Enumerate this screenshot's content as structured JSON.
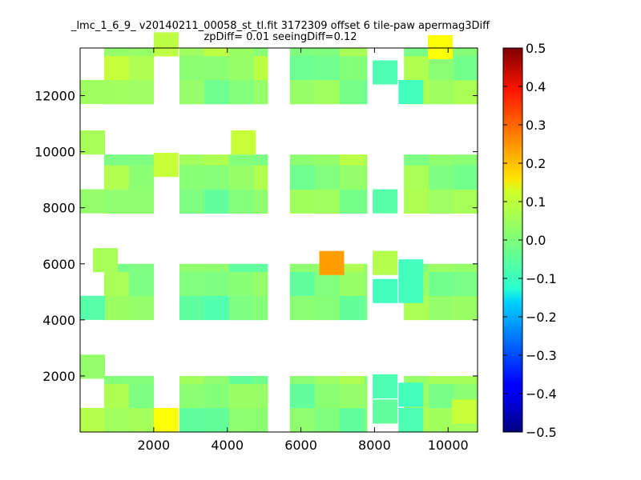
{
  "chart_data": {
    "type": "heatmap",
    "title": "_lmc_1_6_9_ v20140211_00058_st_tl.fit 3172309 offset 6 tile-paw apermag3Diff",
    "subtitle": "zpDiff= 0.01 seeingDiff=0.12",
    "xlabel": "",
    "ylabel": "",
    "xlim": [
      0,
      10800
    ],
    "ylim": [
      0,
      13700
    ],
    "x_ticks": [
      2000,
      4000,
      6000,
      8000,
      10000
    ],
    "y_ticks": [
      2000,
      4000,
      6000,
      8000,
      10000,
      12000
    ],
    "x_tick_labels": [
      "2000",
      "4000",
      "6000",
      "8000",
      "10000"
    ],
    "y_tick_labels": [
      "2000",
      "4000",
      "6000",
      "8000",
      "10000",
      "12000"
    ],
    "colorbar": {
      "colormap": "jet",
      "vmin": -0.5,
      "vmax": 0.5,
      "ticks": [
        0.5,
        0.4,
        0.3,
        0.2,
        0.1,
        0.0,
        -0.1,
        -0.2,
        -0.3,
        -0.4,
        -0.5
      ],
      "tick_labels": [
        "0.5",
        "0.4",
        "0.3",
        "0.2",
        "0.1",
        "0.0",
        "−0.1",
        "−0.2",
        "−0.3",
        "−0.4",
        "−0.5"
      ]
    },
    "grid": false,
    "cell_size": [
      675,
      860
    ],
    "blocks": [
      {
        "x": [
          650,
          2000
        ],
        "y": [
          0,
          2000
        ],
        "value": 0.02
      },
      {
        "x": [
          2700,
          5100
        ],
        "y": [
          0,
          2000
        ],
        "value": 0.0
      },
      {
        "x": [
          5700,
          7800
        ],
        "y": [
          0,
          2000
        ],
        "value": 0.01
      },
      {
        "x": [
          8800,
          10800
        ],
        "y": [
          0,
          2000
        ],
        "value": 0.03
      },
      {
        "x": [
          650,
          2000
        ],
        "y": [
          4000,
          6000
        ],
        "value": 0.01
      },
      {
        "x": [
          2700,
          5100
        ],
        "y": [
          4000,
          6000
        ],
        "value": -0.01
      },
      {
        "x": [
          5700,
          7800
        ],
        "y": [
          4000,
          6000
        ],
        "value": 0.01
      },
      {
        "x": [
          8800,
          10800
        ],
        "y": [
          4000,
          6000
        ],
        "value": 0.02
      },
      {
        "x": [
          650,
          2000
        ],
        "y": [
          7800,
          9900
        ],
        "value": 0.01
      },
      {
        "x": [
          2700,
          5100
        ],
        "y": [
          7800,
          9900
        ],
        "value": 0.01
      },
      {
        "x": [
          5700,
          7800
        ],
        "y": [
          7800,
          9900
        ],
        "value": 0.02
      },
      {
        "x": [
          8800,
          10800
        ],
        "y": [
          7800,
          9900
        ],
        "value": 0.02
      },
      {
        "x": [
          650,
          2000
        ],
        "y": [
          11700,
          13700
        ],
        "value": 0.03
      },
      {
        "x": [
          2700,
          5100
        ],
        "y": [
          11700,
          13700
        ],
        "value": 0.02
      },
      {
        "x": [
          5700,
          7800
        ],
        "y": [
          11700,
          13700
        ],
        "value": 0.01
      },
      {
        "x": [
          8800,
          10800
        ],
        "y": [
          11700,
          13700
        ],
        "value": 0.02
      }
    ],
    "cells": [
      {
        "x": 0,
        "y": 0,
        "value": 0.05
      },
      {
        "x": 2000,
        "y": 0,
        "value": 0.12
      },
      {
        "x": 0,
        "y": 1900,
        "value": 0.02
      },
      {
        "x": 0,
        "y": 4000,
        "value": -0.04
      },
      {
        "x": 350,
        "y": 5700,
        "value": 0.04
      },
      {
        "x": 6500,
        "y": 5600,
        "value": 0.22
      },
      {
        "x": 7950,
        "y": 5600,
        "value": 0.05
      },
      {
        "x": 8650,
        "y": 5300,
        "value": -0.06
      },
      {
        "x": 8650,
        "y": 4600,
        "value": -0.06
      },
      {
        "x": 7950,
        "y": 4600,
        "value": -0.06
      },
      {
        "x": 0,
        "y": 7800,
        "value": 0.02
      },
      {
        "x": 0,
        "y": 9900,
        "value": 0.04
      },
      {
        "x": 2000,
        "y": 9100,
        "value": 0.07
      },
      {
        "x": 4100,
        "y": 9900,
        "value": 0.07
      },
      {
        "x": 7950,
        "y": 7800,
        "value": -0.04
      },
      {
        "x": 0,
        "y": 11700,
        "value": 0.03
      },
      {
        "x": 2000,
        "y": 13400,
        "value": 0.06
      },
      {
        "x": 7950,
        "y": 12400,
        "value": -0.05
      },
      {
        "x": 8650,
        "y": 11700,
        "value": -0.06
      },
      {
        "x": 9450,
        "y": 13300,
        "value": 0.12
      },
      {
        "x": 7950,
        "y": 1200,
        "value": -0.05
      },
      {
        "x": 7950,
        "y": 300,
        "value": -0.03
      },
      {
        "x": 8650,
        "y": 900,
        "value": -0.06
      },
      {
        "x": 8650,
        "y": 0,
        "value": -0.05
      },
      {
        "x": 10100,
        "y": 300,
        "value": 0.07
      }
    ]
  }
}
